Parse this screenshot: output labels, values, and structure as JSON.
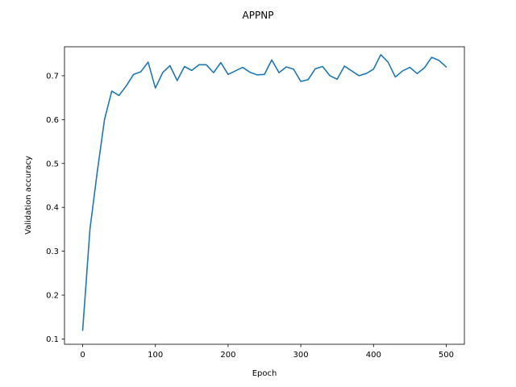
{
  "chart_data": {
    "type": "line",
    "title": "APPNP",
    "xlabel": "Epoch",
    "ylabel": "Validation accuracy",
    "xlim": [
      -25,
      525
    ],
    "ylim": [
      0.088,
      0.766
    ],
    "xticks": [
      0,
      100,
      200,
      300,
      400,
      500
    ],
    "yticks": [
      0.1,
      0.2,
      0.3,
      0.4,
      0.5,
      0.6,
      0.7
    ],
    "xtick_labels": [
      "0",
      "100",
      "200",
      "300",
      "400",
      "500"
    ],
    "ytick_labels": [
      "0.1",
      "0.2",
      "0.3",
      "0.4",
      "0.5",
      "0.6",
      "0.7"
    ],
    "grid": false,
    "series": [
      {
        "color": "#1f77b4",
        "x": [
          0,
          10,
          20,
          30,
          40,
          50,
          60,
          70,
          80,
          90,
          100,
          110,
          120,
          130,
          140,
          150,
          160,
          170,
          180,
          190,
          200,
          210,
          220,
          230,
          240,
          250,
          260,
          270,
          280,
          290,
          300,
          310,
          320,
          330,
          340,
          350,
          360,
          370,
          380,
          390,
          400,
          410,
          420,
          430,
          440,
          450,
          460,
          470,
          480,
          490,
          500
        ],
        "y": [
          0.12,
          0.35,
          0.48,
          0.6,
          0.665,
          0.655,
          0.677,
          0.703,
          0.709,
          0.731,
          0.672,
          0.707,
          0.723,
          0.689,
          0.721,
          0.712,
          0.725,
          0.725,
          0.707,
          0.73,
          0.703,
          0.711,
          0.719,
          0.708,
          0.702,
          0.703,
          0.736,
          0.707,
          0.72,
          0.715,
          0.687,
          0.691,
          0.716,
          0.721,
          0.7,
          0.692,
          0.722,
          0.711,
          0.7,
          0.705,
          0.715,
          0.748,
          0.731,
          0.697,
          0.711,
          0.719,
          0.705,
          0.718,
          0.742,
          0.735,
          0.72
        ]
      }
    ]
  }
}
